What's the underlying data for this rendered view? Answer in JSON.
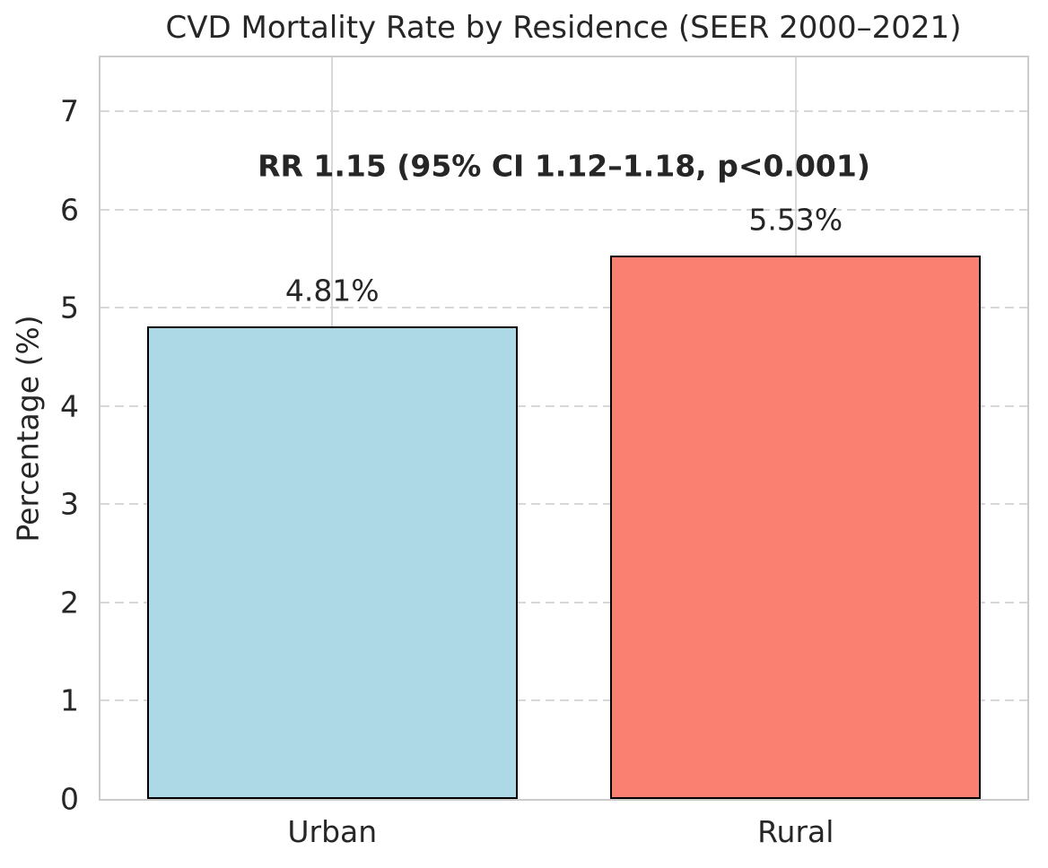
{
  "chart_data": {
    "type": "bar",
    "title": "CVD Mortality Rate by Residence (SEER 2000–2021)",
    "ylabel": "Percentage (%)",
    "xlabel": "",
    "categories": [
      "Urban",
      "Rural"
    ],
    "values": [
      4.81,
      5.53
    ],
    "value_labels": [
      "4.81%",
      "5.53%"
    ],
    "annotation": "RR 1.15 (95% CI 1.12–1.18, p<0.001)",
    "bar_colors": [
      "#ADD8E6",
      "#FA8072"
    ],
    "bar_edge_color": "#000000",
    "yticks": [
      0,
      1,
      2,
      3,
      4,
      5,
      6,
      7
    ],
    "ylim": [
      0,
      7.55
    ],
    "grid": "horizontal dashed, vertical solid at category centers",
    "grid_color": "#D8D8D8",
    "spine_color": "#CBCBCB",
    "text_color": "#262626",
    "legend": "none"
  }
}
